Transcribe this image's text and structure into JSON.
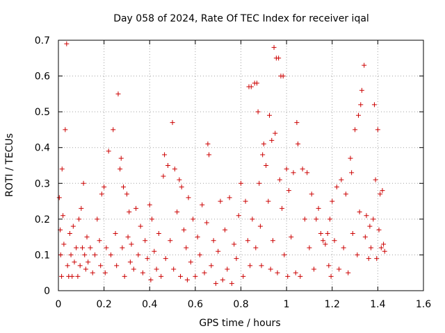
{
  "chart_data": {
    "type": "scatter",
    "title": "Day 058 of 2024, Rate Of TEC Index for receiver iqal",
    "xlabel": "GPS time / hours",
    "ylabel": "ROTI / TECUs",
    "xlim": [
      0,
      1.6
    ],
    "ylim": [
      0,
      0.7
    ],
    "x_ticks": [
      0,
      0.2,
      0.4,
      0.6,
      0.8,
      1,
      1.2,
      1.4,
      1.6
    ],
    "x_tick_labels": [
      "0",
      "0.2",
      "0.4",
      "0.6",
      "0.8",
      "1",
      "1.2",
      "1.4",
      "1.6"
    ],
    "y_ticks": [
      0,
      0.1,
      0.2,
      0.3,
      0.4,
      0.5,
      0.6,
      0.7
    ],
    "y_tick_labels": [
      "0",
      "0.1",
      "0.2",
      "0.3",
      "0.4",
      "0.5",
      "0.6",
      "0.7"
    ],
    "grid": true,
    "marker": "+",
    "series": [
      {
        "name": "ROTI",
        "color": "#cc0000",
        "points": [
          [
            0.004,
            0.26
          ],
          [
            0.008,
            0.17
          ],
          [
            0.01,
            0.1
          ],
          [
            0.014,
            0.04
          ],
          [
            0.016,
            0.34
          ],
          [
            0.02,
            0.21
          ],
          [
            0.024,
            0.13
          ],
          [
            0.03,
            0.45
          ],
          [
            0.036,
            0.69
          ],
          [
            0.04,
            0.07
          ],
          [
            0.045,
            0.04
          ],
          [
            0.05,
            0.16
          ],
          [
            0.055,
            0.1
          ],
          [
            0.06,
            0.04
          ],
          [
            0.065,
            0.18
          ],
          [
            0.07,
            0.08
          ],
          [
            0.078,
            0.12
          ],
          [
            0.085,
            0.04
          ],
          [
            0.09,
            0.2
          ],
          [
            0.095,
            0.07
          ],
          [
            0.1,
            0.23
          ],
          [
            0.105,
            0.12
          ],
          [
            0.11,
            0.3
          ],
          [
            0.115,
            0.1
          ],
          [
            0.12,
            0.06
          ],
          [
            0.125,
            0.15
          ],
          [
            0.13,
            0.08
          ],
          [
            0.14,
            0.12
          ],
          [
            0.15,
            0.05
          ],
          [
            0.16,
            0.1
          ],
          [
            0.17,
            0.2
          ],
          [
            0.18,
            0.14
          ],
          [
            0.185,
            0.07
          ],
          [
            0.19,
            0.27
          ],
          [
            0.2,
            0.29
          ],
          [
            0.205,
            0.05
          ],
          [
            0.21,
            0.12
          ],
          [
            0.22,
            0.39
          ],
          [
            0.23,
            0.1
          ],
          [
            0.24,
            0.45
          ],
          [
            0.25,
            0.16
          ],
          [
            0.255,
            0.07
          ],
          [
            0.262,
            0.55
          ],
          [
            0.27,
            0.34
          ],
          [
            0.275,
            0.37
          ],
          [
            0.28,
            0.12
          ],
          [
            0.285,
            0.29
          ],
          [
            0.29,
            0.04
          ],
          [
            0.3,
            0.27
          ],
          [
            0.305,
            0.15
          ],
          [
            0.31,
            0.22
          ],
          [
            0.315,
            0.08
          ],
          [
            0.32,
            0.13
          ],
          [
            0.33,
            0.06
          ],
          [
            0.34,
            0.23
          ],
          [
            0.35,
            0.1
          ],
          [
            0.36,
            0.18
          ],
          [
            0.37,
            0.05
          ],
          [
            0.38,
            0.14
          ],
          [
            0.39,
            0.09
          ],
          [
            0.4,
            0.24
          ],
          [
            0.405,
            0.03
          ],
          [
            0.41,
            0.2
          ],
          [
            0.42,
            0.11
          ],
          [
            0.43,
            0.06
          ],
          [
            0.44,
            0.16
          ],
          [
            0.45,
            0.04
          ],
          [
            0.46,
            0.32
          ],
          [
            0.465,
            0.38
          ],
          [
            0.47,
            0.09
          ],
          [
            0.48,
            0.35
          ],
          [
            0.49,
            0.14
          ],
          [
            0.5,
            0.47
          ],
          [
            0.505,
            0.06
          ],
          [
            0.51,
            0.34
          ],
          [
            0.52,
            0.22
          ],
          [
            0.53,
            0.31
          ],
          [
            0.535,
            0.04
          ],
          [
            0.54,
            0.29
          ],
          [
            0.55,
            0.17
          ],
          [
            0.56,
            0.12
          ],
          [
            0.565,
            0.03
          ],
          [
            0.57,
            0.26
          ],
          [
            0.58,
            0.08
          ],
          [
            0.59,
            0.2
          ],
          [
            0.6,
            0.04
          ],
          [
            0.61,
            0.15
          ],
          [
            0.62,
            0.1
          ],
          [
            0.63,
            0.24
          ],
          [
            0.64,
            0.05
          ],
          [
            0.65,
            0.19
          ],
          [
            0.655,
            0.41
          ],
          [
            0.66,
            0.38
          ],
          [
            0.67,
            0.07
          ],
          [
            0.68,
            0.14
          ],
          [
            0.69,
            0.02
          ],
          [
            0.7,
            0.11
          ],
          [
            0.71,
            0.25
          ],
          [
            0.72,
            0.03
          ],
          [
            0.73,
            0.17
          ],
          [
            0.74,
            0.06
          ],
          [
            0.75,
            0.26
          ],
          [
            0.76,
            0.02
          ],
          [
            0.77,
            0.13
          ],
          [
            0.78,
            0.09
          ],
          [
            0.79,
            0.21
          ],
          [
            0.8,
            0.3
          ],
          [
            0.81,
            0.04
          ],
          [
            0.82,
            0.25
          ],
          [
            0.83,
            0.14
          ],
          [
            0.835,
            0.57
          ],
          [
            0.84,
            0.07
          ],
          [
            0.845,
            0.57
          ],
          [
            0.85,
            0.2
          ],
          [
            0.86,
            0.58
          ],
          [
            0.865,
            0.12
          ],
          [
            0.87,
            0.58
          ],
          [
            0.875,
            0.5
          ],
          [
            0.88,
            0.3
          ],
          [
            0.885,
            0.18
          ],
          [
            0.89,
            0.07
          ],
          [
            0.895,
            0.38
          ],
          [
            0.9,
            0.41
          ],
          [
            0.91,
            0.35
          ],
          [
            0.92,
            0.25
          ],
          [
            0.925,
            0.49
          ],
          [
            0.93,
            0.06
          ],
          [
            0.935,
            0.42
          ],
          [
            0.94,
            0.14
          ],
          [
            0.945,
            0.68
          ],
          [
            0.95,
            0.44
          ],
          [
            0.955,
            0.65
          ],
          [
            0.96,
            0.05
          ],
          [
            0.965,
            0.65
          ],
          [
            0.97,
            0.31
          ],
          [
            0.975,
            0.6
          ],
          [
            0.98,
            0.23
          ],
          [
            0.985,
            0.6
          ],
          [
            0.99,
            0.1
          ],
          [
            1.0,
            0.34
          ],
          [
            1.005,
            0.04
          ],
          [
            1.01,
            0.28
          ],
          [
            1.02,
            0.15
          ],
          [
            1.03,
            0.33
          ],
          [
            1.04,
            0.05
          ],
          [
            1.045,
            0.47
          ],
          [
            1.05,
            0.41
          ],
          [
            1.06,
            0.04
          ],
          [
            1.07,
            0.34
          ],
          [
            1.08,
            0.2
          ],
          [
            1.09,
            0.33
          ],
          [
            1.1,
            0.12
          ],
          [
            1.11,
            0.27
          ],
          [
            1.12,
            0.06
          ],
          [
            1.13,
            0.2
          ],
          [
            1.14,
            0.23
          ],
          [
            1.15,
            0.16
          ],
          [
            1.16,
            0.14
          ],
          [
            1.17,
            0.13
          ],
          [
            1.18,
            0.16
          ],
          [
            1.185,
            0.07
          ],
          [
            1.19,
            0.2
          ],
          [
            1.195,
            0.04
          ],
          [
            1.2,
            0.25
          ],
          [
            1.21,
            0.14
          ],
          [
            1.22,
            0.29
          ],
          [
            1.23,
            0.06
          ],
          [
            1.24,
            0.31
          ],
          [
            1.25,
            0.12
          ],
          [
            1.26,
            0.27
          ],
          [
            1.27,
            0.05
          ],
          [
            1.28,
            0.37
          ],
          [
            1.285,
            0.33
          ],
          [
            1.29,
            0.16
          ],
          [
            1.3,
            0.45
          ],
          [
            1.31,
            0.1
          ],
          [
            1.315,
            0.49
          ],
          [
            1.32,
            0.22
          ],
          [
            1.325,
            0.52
          ],
          [
            1.33,
            0.56
          ],
          [
            1.34,
            0.63
          ],
          [
            1.345,
            0.15
          ],
          [
            1.35,
            0.21
          ],
          [
            1.36,
            0.09
          ],
          [
            1.365,
            0.18
          ],
          [
            1.37,
            0.12
          ],
          [
            1.38,
            0.2
          ],
          [
            1.385,
            0.52
          ],
          [
            1.39,
            0.31
          ],
          [
            1.395,
            0.09
          ],
          [
            1.4,
            0.45
          ],
          [
            1.405,
            0.17
          ],
          [
            1.41,
            0.27
          ],
          [
            1.415,
            0.12
          ],
          [
            1.42,
            0.28
          ],
          [
            1.425,
            0.13
          ],
          [
            1.43,
            0.11
          ]
        ]
      }
    ]
  }
}
